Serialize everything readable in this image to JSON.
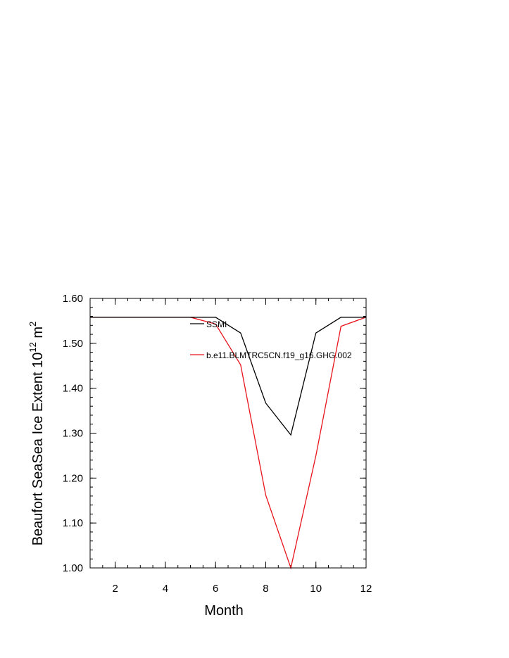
{
  "chart_data": {
    "type": "line",
    "title": "",
    "xlabel": "Month",
    "ylabel": "Beaufort SeaSea Ice Extent 10",
    "ylabel_superscript": "12",
    "ylabel_unit": " m",
    "ylabel_unit_superscript": "2",
    "xlim": [
      1,
      12
    ],
    "ylim": [
      1.0,
      1.6
    ],
    "x_ticks": [
      2,
      4,
      6,
      8,
      10,
      12
    ],
    "x_tick_labels": [
      "2",
      "4",
      "6",
      "8",
      "10",
      "12"
    ],
    "y_ticks": [
      1.0,
      1.1,
      1.2,
      1.3,
      1.4,
      1.5,
      1.6
    ],
    "y_tick_labels": [
      "1.00",
      "1.10",
      "1.20",
      "1.30",
      "1.40",
      "1.50",
      "1.60"
    ],
    "grid": false,
    "legend_position": "top-right inside",
    "x": [
      1,
      2,
      3,
      4,
      5,
      6,
      7,
      8,
      9,
      10,
      11,
      12
    ],
    "series": [
      {
        "name": "SSMI",
        "color": "#000000",
        "values": [
          1.558,
          1.558,
          1.558,
          1.558,
          1.558,
          1.558,
          1.523,
          1.367,
          1.296,
          1.523,
          1.558,
          1.558
        ]
      },
      {
        "name": "b.e11.BLMTRC5CN.f19_g16.GHG.002",
        "color": "#e8141c",
        "values": [
          1.558,
          1.558,
          1.558,
          1.558,
          1.558,
          1.543,
          1.452,
          1.162,
          1.0,
          1.25,
          1.538,
          1.558
        ]
      }
    ]
  }
}
